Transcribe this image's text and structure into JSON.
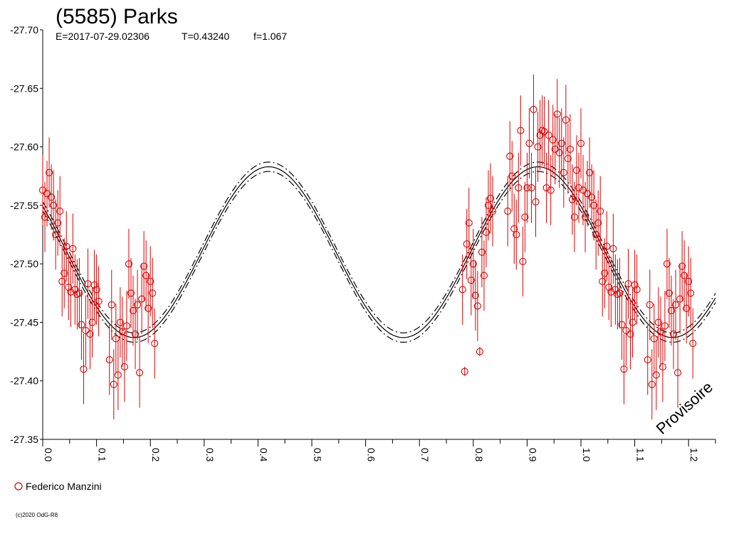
{
  "header": {
    "title": "(5585) Parks",
    "epoch": "E=2017-07-29.02306",
    "period": "T=0.43240",
    "factor": "f=1.067"
  },
  "watermark": "Provisoire",
  "copyright": "(c)2020 OdG-R8",
  "chart_data": {
    "type": "scatter",
    "title": "(5585) Parks",
    "xlabel": "",
    "ylabel": "",
    "xlim": [
      0.0,
      1.25
    ],
    "ylim": [
      -27.35,
      -27.7
    ],
    "y_inverted": true,
    "x_ticks": [
      "0.0",
      "0.1",
      "0.2",
      "0.3",
      "0.4",
      "0.5",
      "0.6",
      "0.7",
      "0.8",
      "0.9",
      "1.0",
      "1.1",
      "1.2"
    ],
    "y_ticks": [
      "-27.70",
      "-27.65",
      "-27.60",
      "-27.55",
      "-27.50",
      "-27.45",
      "-27.40",
      "-27.35"
    ],
    "grid": false,
    "legend_position": "bottom-left",
    "fit_curve": {
      "mean": -27.51,
      "amplitude": 0.073,
      "peak_phase": 0.42,
      "envelope_offset": 0.004,
      "color": "#000000"
    },
    "series": [
      {
        "name": "Federico Manzini",
        "color": "#dd0000",
        "marker": "open-circle",
        "points": [
          [
            0.0,
            -27.563,
            0.03
          ],
          [
            0.004,
            -27.54,
            0.03
          ],
          [
            0.008,
            -27.56,
            0.028
          ],
          [
            0.012,
            -27.578,
            0.03
          ],
          [
            0.016,
            -27.557,
            0.028
          ],
          [
            0.02,
            -27.55,
            0.03
          ],
          [
            0.024,
            -27.525,
            0.03
          ],
          [
            0.028,
            -27.535,
            0.028
          ],
          [
            0.032,
            -27.545,
            0.03
          ],
          [
            0.036,
            -27.485,
            0.03
          ],
          [
            0.04,
            -27.492,
            0.03
          ],
          [
            0.044,
            -27.515,
            0.03
          ],
          [
            0.048,
            -27.48,
            0.028
          ],
          [
            0.052,
            -27.476,
            0.03
          ],
          [
            0.056,
            -27.513,
            0.03
          ],
          [
            0.06,
            -27.478,
            0.03
          ],
          [
            0.064,
            -27.474,
            0.03
          ],
          [
            0.068,
            -27.475,
            0.03
          ],
          [
            0.072,
            -27.448,
            0.03
          ],
          [
            0.076,
            -27.41,
            0.03
          ],
          [
            0.08,
            -27.443,
            0.03
          ],
          [
            0.084,
            -27.483,
            0.03
          ],
          [
            0.088,
            -27.44,
            0.03
          ],
          [
            0.092,
            -27.45,
            0.03
          ],
          [
            0.096,
            -27.482,
            0.03
          ],
          [
            0.1,
            -27.478,
            0.03
          ],
          [
            0.104,
            -27.468,
            0.03
          ],
          [
            0.124,
            -27.418,
            0.03
          ],
          [
            0.128,
            -27.465,
            0.03
          ],
          [
            0.132,
            -27.397,
            0.03
          ],
          [
            0.136,
            -27.436,
            0.03
          ],
          [
            0.14,
            -27.405,
            0.03
          ],
          [
            0.144,
            -27.45,
            0.03
          ],
          [
            0.148,
            -27.442,
            0.03
          ],
          [
            0.152,
            -27.412,
            0.03
          ],
          [
            0.156,
            -27.447,
            0.03
          ],
          [
            0.16,
            -27.5,
            0.03
          ],
          [
            0.164,
            -27.475,
            0.03
          ],
          [
            0.168,
            -27.46,
            0.03
          ],
          [
            0.172,
            -27.44,
            0.03
          ],
          [
            0.176,
            -27.465,
            0.03
          ],
          [
            0.18,
            -27.407,
            0.03
          ],
          [
            0.184,
            -27.47,
            0.03
          ],
          [
            0.188,
            -27.498,
            0.03
          ],
          [
            0.192,
            -27.49,
            0.03
          ],
          [
            0.196,
            -27.462,
            0.03
          ],
          [
            0.2,
            -27.485,
            0.03
          ],
          [
            0.204,
            -27.475,
            0.03
          ],
          [
            0.208,
            -27.432,
            0.03
          ],
          [
            0.78,
            -27.478,
            0.03
          ],
          [
            0.784,
            -27.408,
            0.004
          ],
          [
            0.788,
            -27.517,
            0.03
          ],
          [
            0.792,
            -27.535,
            0.03
          ],
          [
            0.796,
            -27.486,
            0.03
          ],
          [
            0.8,
            -27.5,
            0.03
          ],
          [
            0.804,
            -27.473,
            0.03
          ],
          [
            0.808,
            -27.464,
            0.03
          ],
          [
            0.812,
            -27.425,
            0.004
          ],
          [
            0.816,
            -27.51,
            0.03
          ],
          [
            0.82,
            -27.49,
            0.03
          ],
          [
            0.824,
            -27.527,
            0.03
          ],
          [
            0.828,
            -27.55,
            0.03
          ],
          [
            0.832,
            -27.556,
            0.03
          ],
          [
            0.836,
            -27.545,
            0.03
          ],
          [
            0.864,
            -27.545,
            0.03
          ],
          [
            0.868,
            -27.592,
            0.03
          ],
          [
            0.872,
            -27.575,
            0.03
          ],
          [
            0.876,
            -27.53,
            0.03
          ],
          [
            0.88,
            -27.525,
            0.03
          ],
          [
            0.884,
            -27.565,
            0.03
          ],
          [
            0.888,
            -27.614,
            0.03
          ],
          [
            0.892,
            -27.502,
            0.03
          ],
          [
            0.896,
            -27.54,
            0.03
          ],
          [
            0.9,
            -27.565,
            0.03
          ],
          [
            0.904,
            -27.603,
            0.03
          ],
          [
            0.908,
            -27.565,
            0.03
          ],
          [
            0.912,
            -27.632,
            0.03
          ],
          [
            0.916,
            -27.553,
            0.03
          ],
          [
            0.92,
            -27.6,
            0.03
          ],
          [
            0.924,
            -27.61,
            0.03
          ],
          [
            0.928,
            -27.614,
            0.03
          ],
          [
            0.932,
            -27.613,
            0.03
          ],
          [
            0.936,
            -27.565,
            0.03
          ],
          [
            0.94,
            -27.61,
            0.03
          ],
          [
            0.944,
            -27.563,
            0.03
          ],
          [
            0.948,
            -27.606,
            0.03
          ],
          [
            0.952,
            -27.598,
            0.03
          ],
          [
            0.956,
            -27.628,
            0.03
          ],
          [
            0.96,
            -27.595,
            0.03
          ],
          [
            0.964,
            -27.603,
            0.03
          ],
          [
            0.968,
            -27.578,
            0.03
          ],
          [
            0.972,
            -27.623,
            0.03
          ],
          [
            0.976,
            -27.59,
            0.03
          ],
          [
            0.98,
            -27.598,
            0.03
          ],
          [
            0.984,
            -27.555,
            0.03
          ],
          [
            0.988,
            -27.54,
            0.03
          ],
          [
            0.992,
            -27.58,
            0.03
          ],
          [
            0.996,
            -27.565,
            0.03
          ],
          [
            1.0,
            -27.603,
            0.03
          ],
          [
            1.004,
            -27.563,
            0.03
          ],
          [
            1.008,
            -27.54,
            0.03
          ],
          [
            1.012,
            -27.56,
            0.028
          ],
          [
            1.016,
            -27.578,
            0.03
          ],
          [
            1.02,
            -27.557,
            0.028
          ],
          [
            1.024,
            -27.55,
            0.03
          ],
          [
            1.028,
            -27.525,
            0.03
          ],
          [
            1.032,
            -27.535,
            0.028
          ],
          [
            1.036,
            -27.545,
            0.03
          ],
          [
            1.04,
            -27.485,
            0.03
          ],
          [
            1.044,
            -27.492,
            0.03
          ],
          [
            1.048,
            -27.515,
            0.03
          ],
          [
            1.052,
            -27.48,
            0.028
          ],
          [
            1.056,
            -27.476,
            0.03
          ],
          [
            1.06,
            -27.513,
            0.03
          ],
          [
            1.064,
            -27.478,
            0.03
          ],
          [
            1.068,
            -27.474,
            0.03
          ],
          [
            1.072,
            -27.475,
            0.03
          ],
          [
            1.076,
            -27.448,
            0.03
          ],
          [
            1.08,
            -27.41,
            0.03
          ],
          [
            1.084,
            -27.443,
            0.03
          ],
          [
            1.088,
            -27.483,
            0.03
          ],
          [
            1.092,
            -27.44,
            0.03
          ],
          [
            1.096,
            -27.45,
            0.03
          ],
          [
            1.1,
            -27.482,
            0.03
          ],
          [
            1.104,
            -27.478,
            0.03
          ],
          [
            1.124,
            -27.418,
            0.03
          ],
          [
            1.128,
            -27.465,
            0.03
          ],
          [
            1.132,
            -27.397,
            0.03
          ],
          [
            1.136,
            -27.436,
            0.03
          ],
          [
            1.14,
            -27.405,
            0.03
          ],
          [
            1.144,
            -27.45,
            0.03
          ],
          [
            1.148,
            -27.442,
            0.03
          ],
          [
            1.152,
            -27.412,
            0.03
          ],
          [
            1.156,
            -27.447,
            0.03
          ],
          [
            1.16,
            -27.5,
            0.03
          ],
          [
            1.164,
            -27.475,
            0.03
          ],
          [
            1.168,
            -27.46,
            0.03
          ],
          [
            1.172,
            -27.44,
            0.03
          ],
          [
            1.176,
            -27.465,
            0.03
          ],
          [
            1.18,
            -27.407,
            0.03
          ],
          [
            1.184,
            -27.47,
            0.03
          ],
          [
            1.188,
            -27.498,
            0.03
          ],
          [
            1.192,
            -27.49,
            0.03
          ],
          [
            1.196,
            -27.462,
            0.03
          ],
          [
            1.2,
            -27.485,
            0.03
          ],
          [
            1.204,
            -27.475,
            0.03
          ],
          [
            1.208,
            -27.432,
            0.03
          ]
        ]
      }
    ]
  }
}
